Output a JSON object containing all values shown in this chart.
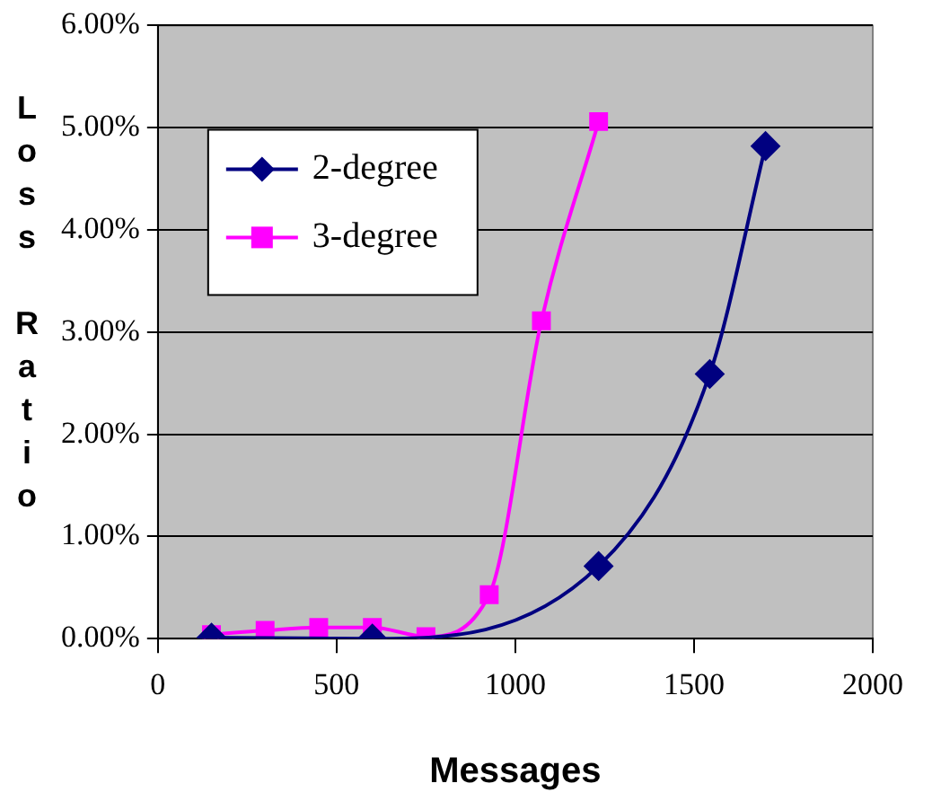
{
  "chart_data": {
    "type": "line",
    "xlabel": "Messages",
    "ylabel": "Loss Ratio",
    "xlim": [
      0,
      2000
    ],
    "xticks": [
      0,
      500,
      1000,
      1500,
      2000
    ],
    "ylim": [
      0,
      6
    ],
    "yticks": [
      {
        "value": 0,
        "label": "0.00%"
      },
      {
        "value": 1,
        "label": "1.00%"
      },
      {
        "value": 2,
        "label": "2.00%"
      },
      {
        "value": 3,
        "label": "3.00%"
      },
      {
        "value": 4,
        "label": "4.00%"
      },
      {
        "value": 5,
        "label": "5.00%"
      },
      {
        "value": 6,
        "label": "6.00%"
      }
    ],
    "grid": "y",
    "legend": "top left",
    "series": [
      {
        "name": "2-degree",
        "color": "#000080",
        "marker": "diamond",
        "x": [
          150,
          600,
          1233,
          1544,
          1700
        ],
        "values": [
          0.01,
          0,
          0.71,
          2.59,
          4.82
        ]
      },
      {
        "name": "3-degree",
        "color": "#ff00ff",
        "marker": "square",
        "x": [
          150,
          300,
          450,
          600,
          750,
          927,
          1073,
          1233
        ],
        "values": [
          0.04,
          0.08,
          0.11,
          0.11,
          0.02,
          0.43,
          3.11,
          5.06
        ]
      }
    ]
  }
}
